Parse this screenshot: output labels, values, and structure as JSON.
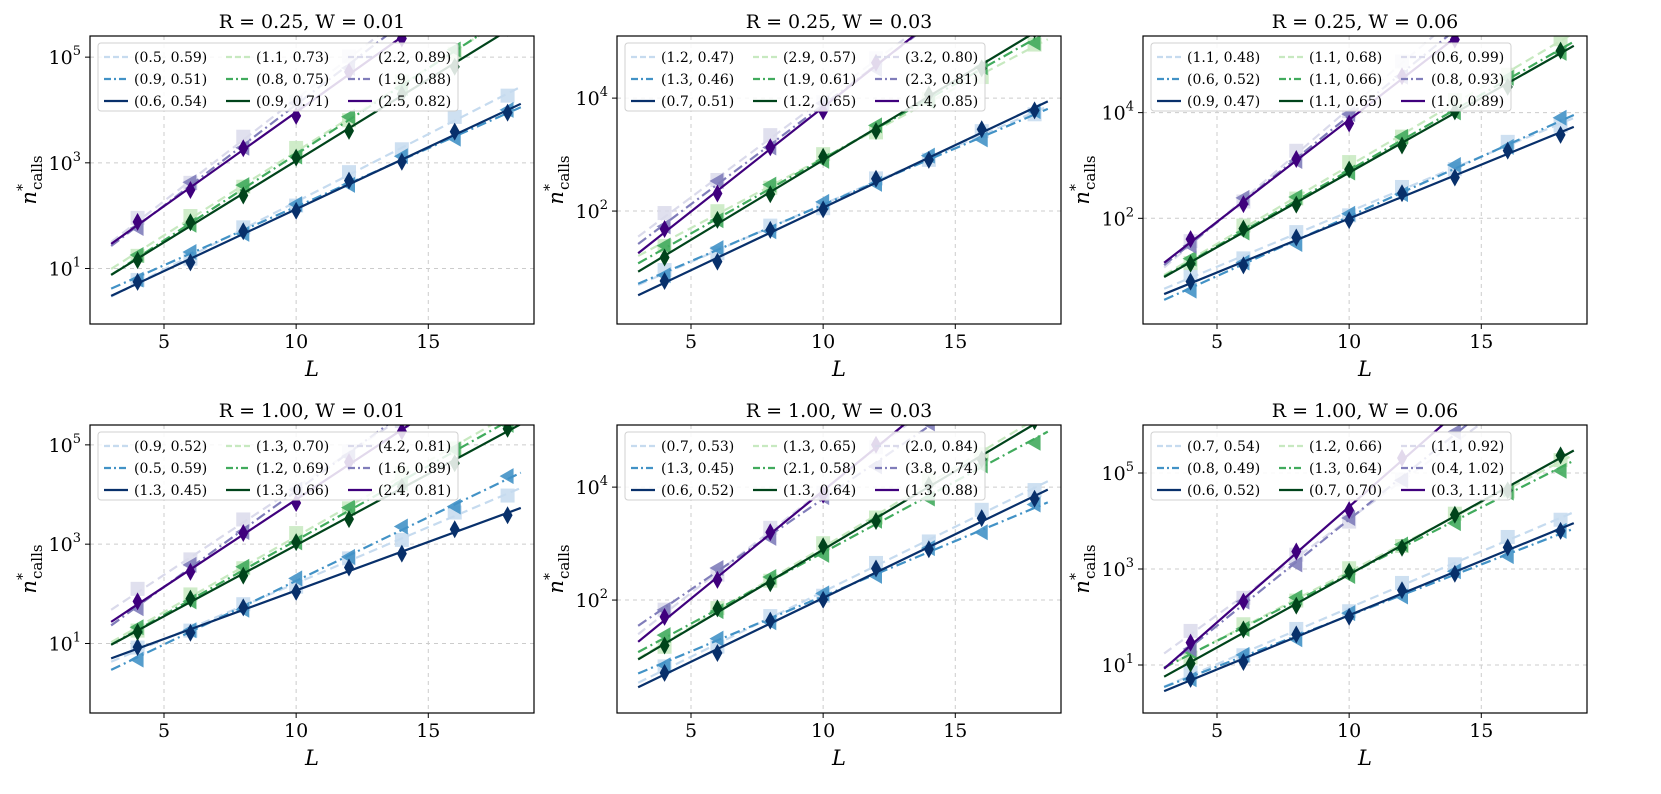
{
  "figure": {
    "xlabel": "L",
    "ylabel": "n*calls"
  },
  "styles": {
    "colors": {
      "light_blue": "#c6dbef",
      "mid_blue": "#4292c6",
      "dark_blue": "#08306b",
      "light_green": "#c7e9c0",
      "mid_green": "#41ab5d",
      "dark_green": "#00441b",
      "light_purple": "#dadaeb",
      "mid_purple": "#807dba",
      "dark_purple": "#3f007d"
    },
    "dash": [
      "dashed",
      "dashdot",
      "solid"
    ]
  },
  "chart_data": [
    {
      "type": "line",
      "title": "R = 0.25, W = 0.01",
      "xlabel": "L",
      "ylabel": "n*calls",
      "y_scale": "log",
      "xlim": [
        2.2,
        19.0
      ],
      "ylog_range": [
        -0.05,
        5.4
      ],
      "xticks": [
        5,
        10,
        15
      ],
      "yticks": [
        1,
        3,
        5
      ],
      "legend": "top-left",
      "grid": true,
      "x": [
        4,
        6,
        8,
        10,
        12,
        14,
        16,
        18
      ],
      "series": [
        {
          "name": "(0.5, 0.59)",
          "a": 0.5,
          "b": 0.59
        },
        {
          "name": "(0.9, 0.51)",
          "a": 0.9,
          "b": 0.51
        },
        {
          "name": "(0.6, 0.54)",
          "a": 0.6,
          "b": 0.54
        },
        {
          "name": "(1.1, 0.73)",
          "a": 1.1,
          "b": 0.73
        },
        {
          "name": "(0.8, 0.75)",
          "a": 0.8,
          "b": 0.75
        },
        {
          "name": "(0.9, 0.71)",
          "a": 0.9,
          "b": 0.71
        },
        {
          "name": "(2.2, 0.89)",
          "a": 2.2,
          "b": 0.89
        },
        {
          "name": "(1.9, 0.88)",
          "a": 1.9,
          "b": 0.88
        },
        {
          "name": "(2.5, 0.82)",
          "a": 2.5,
          "b": 0.82
        }
      ]
    },
    {
      "type": "line",
      "title": "R = 0.25, W = 0.03",
      "xlabel": "L",
      "ylabel": "n*calls",
      "y_scale": "log",
      "xlim": [
        2.2,
        19.0
      ],
      "ylog_range": [
        0.0,
        5.1
      ],
      "xticks": [
        5,
        10,
        15
      ],
      "yticks": [
        2,
        4
      ],
      "legend": "top-left",
      "grid": true,
      "x": [
        4,
        6,
        8,
        10,
        12,
        14,
        16,
        18
      ],
      "series": [
        {
          "name": "(1.2, 0.47)",
          "a": 1.2,
          "b": 0.47
        },
        {
          "name": "(1.3, 0.46)",
          "a": 1.3,
          "b": 0.46
        },
        {
          "name": "(0.7, 0.51)",
          "a": 0.7,
          "b": 0.51
        },
        {
          "name": "(2.9, 0.57)",
          "a": 2.9,
          "b": 0.57
        },
        {
          "name": "(1.9, 0.61)",
          "a": 1.9,
          "b": 0.61
        },
        {
          "name": "(1.2, 0.65)",
          "a": 1.2,
          "b": 0.65
        },
        {
          "name": "(3.2, 0.80)",
          "a": 3.2,
          "b": 0.8
        },
        {
          "name": "(2.3, 0.81)",
          "a": 2.3,
          "b": 0.81
        },
        {
          "name": "(1.4, 0.85)",
          "a": 1.4,
          "b": 0.85
        }
      ]
    },
    {
      "type": "line",
      "title": "R = 0.25, W = 0.06",
      "xlabel": "L",
      "ylabel": "n*calls",
      "y_scale": "log",
      "xlim": [
        2.2,
        19.0
      ],
      "ylog_range": [
        0.0,
        5.45
      ],
      "xticks": [
        5,
        10,
        15
      ],
      "yticks": [
        2,
        4
      ],
      "legend": "top-left",
      "grid": true,
      "x": [
        4,
        6,
        8,
        10,
        12,
        14,
        16,
        18
      ],
      "series": [
        {
          "name": "(1.1, 0.48)",
          "a": 1.1,
          "b": 0.48
        },
        {
          "name": "(0.6, 0.52)",
          "a": 0.6,
          "b": 0.52
        },
        {
          "name": "(0.9, 0.47)",
          "a": 0.9,
          "b": 0.47
        },
        {
          "name": "(1.1, 0.68)",
          "a": 1.1,
          "b": 0.68
        },
        {
          "name": "(1.1, 0.66)",
          "a": 1.1,
          "b": 0.66
        },
        {
          "name": "(1.1, 0.65)",
          "a": 1.1,
          "b": 0.65
        },
        {
          "name": "(0.6, 0.99)",
          "a": 0.6,
          "b": 0.99
        },
        {
          "name": "(0.8, 0.93)",
          "a": 0.8,
          "b": 0.93
        },
        {
          "name": "(1.0, 0.89)",
          "a": 1.0,
          "b": 0.89
        }
      ]
    },
    {
      "type": "line",
      "title": "R = 1.00, W = 0.01",
      "xlabel": "L",
      "ylabel": "n*calls",
      "y_scale": "log",
      "xlim": [
        2.2,
        19.0
      ],
      "ylog_range": [
        -0.4,
        5.4
      ],
      "xticks": [
        5,
        10,
        15
      ],
      "yticks": [
        1,
        3,
        5
      ],
      "legend": "top-left",
      "grid": true,
      "x": [
        4,
        6,
        8,
        10,
        12,
        14,
        16,
        18
      ],
      "series": [
        {
          "name": "(0.9, 0.52)",
          "a": 0.9,
          "b": 0.52
        },
        {
          "name": "(0.5, 0.59)",
          "a": 0.5,
          "b": 0.59
        },
        {
          "name": "(1.3, 0.45)",
          "a": 1.3,
          "b": 0.45
        },
        {
          "name": "(1.3, 0.70)",
          "a": 1.3,
          "b": 0.7
        },
        {
          "name": "(1.2, 0.69)",
          "a": 1.2,
          "b": 0.69
        },
        {
          "name": "(1.3, 0.66)",
          "a": 1.3,
          "b": 0.66
        },
        {
          "name": "(4.2, 0.81)",
          "a": 4.2,
          "b": 0.81
        },
        {
          "name": "(1.6, 0.89)",
          "a": 1.6,
          "b": 0.89
        },
        {
          "name": "(2.4, 0.81)",
          "a": 2.4,
          "b": 0.81
        }
      ]
    },
    {
      "type": "line",
      "title": "R = 1.00, W = 0.03",
      "xlabel": "L",
      "ylabel": "n*calls",
      "y_scale": "log",
      "xlim": [
        2.2,
        19.0
      ],
      "ylog_range": [
        0.0,
        5.1
      ],
      "xticks": [
        5,
        10,
        15
      ],
      "yticks": [
        2,
        4
      ],
      "legend": "top-left",
      "grid": true,
      "x": [
        4,
        6,
        8,
        10,
        12,
        14,
        16,
        18
      ],
      "series": [
        {
          "name": "(0.7, 0.53)",
          "a": 0.7,
          "b": 0.53
        },
        {
          "name": "(1.3, 0.45)",
          "a": 1.3,
          "b": 0.45
        },
        {
          "name": "(0.6, 0.52)",
          "a": 0.6,
          "b": 0.52
        },
        {
          "name": "(1.3, 0.65)",
          "a": 1.3,
          "b": 0.65
        },
        {
          "name": "(2.1, 0.58)",
          "a": 2.1,
          "b": 0.58
        },
        {
          "name": "(1.3, 0.64)",
          "a": 1.3,
          "b": 0.64
        },
        {
          "name": "(2.0, 0.84)",
          "a": 2.0,
          "b": 0.84
        },
        {
          "name": "(3.8, 0.74)",
          "a": 3.8,
          "b": 0.74
        },
        {
          "name": "(1.3, 0.88)",
          "a": 1.3,
          "b": 0.88
        }
      ]
    },
    {
      "type": "line",
      "title": "R = 1.00, W = 0.06",
      "xlabel": "L",
      "ylabel": "n*calls",
      "y_scale": "log",
      "xlim": [
        2.2,
        19.0
      ],
      "ylog_range": [
        0.0,
        6.0
      ],
      "xticks": [
        5,
        10,
        15
      ],
      "yticks": [
        1,
        3,
        5
      ],
      "legend": "top-left",
      "grid": true,
      "x": [
        4,
        6,
        8,
        10,
        12,
        14,
        16,
        18
      ],
      "series": [
        {
          "name": "(0.7, 0.54)",
          "a": 0.7,
          "b": 0.54
        },
        {
          "name": "(0.8, 0.49)",
          "a": 0.8,
          "b": 0.49
        },
        {
          "name": "(0.6, 0.52)",
          "a": 0.6,
          "b": 0.52
        },
        {
          "name": "(1.2, 0.66)",
          "a": 1.2,
          "b": 0.66
        },
        {
          "name": "(1.3, 0.64)",
          "a": 1.3,
          "b": 0.64
        },
        {
          "name": "(0.7, 0.70)",
          "a": 0.7,
          "b": 0.7
        },
        {
          "name": "(1.1, 0.92)",
          "a": 1.1,
          "b": 0.92
        },
        {
          "name": "(0.4, 1.02)",
          "a": 0.4,
          "b": 1.02
        },
        {
          "name": "(0.3, 1.11)",
          "a": 0.3,
          "b": 1.11
        }
      ]
    }
  ]
}
